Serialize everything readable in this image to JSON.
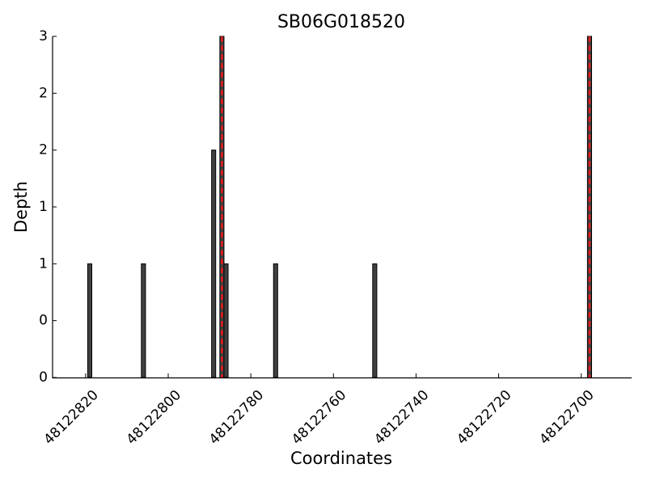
{
  "chart_data": {
    "type": "bar",
    "title": "SB06G018520",
    "x_label": "Coordinates",
    "y_label": "Depth",
    "x": [
      48122819,
      48122806,
      48122789,
      48122787,
      48122786,
      48122774,
      48122750,
      48122698
    ],
    "values": [
      1,
      1,
      2,
      3,
      1,
      1,
      1,
      3
    ],
    "color": "#404040",
    "vlines": [
      48122787,
      48122698
    ],
    "vline_color": "#e31a1c",
    "xlim": [
      48122828,
      48122688
    ],
    "xticks": [
      48122820,
      48122800,
      48122780,
      48122760,
      48122740,
      48122720,
      48122700
    ],
    "ylim": [
      0,
      3
    ],
    "yticks": [
      0,
      {
        "value": 0.5,
        "label": "0"
      },
      1,
      {
        "value": 1.5,
        "label": "1"
      },
      2,
      {
        "value": 2.5,
        "label": "2"
      },
      3
    ],
    "grid": false
  }
}
